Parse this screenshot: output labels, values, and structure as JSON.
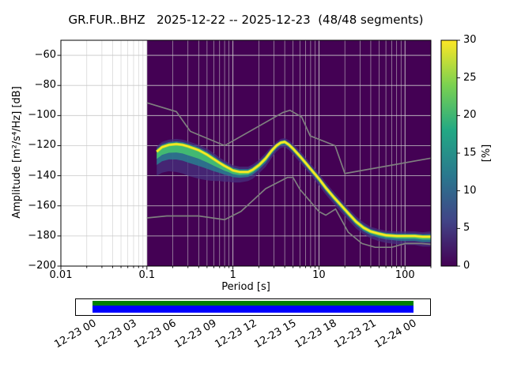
{
  "title": "GR.FUR..BHZ   2025-12-22 -- 2025-12-23  (48/48 segments)",
  "axes": {
    "xlabel": "Period [s]",
    "ylabel": "Amplitude [m²/s⁴/Hz] [dB]",
    "x_tick_labels": [
      "0.01",
      "0.1",
      "1",
      "10",
      "100"
    ],
    "x_tick_values": [
      0.01,
      0.1,
      1,
      10,
      100
    ],
    "y_tick_labels": [
      "−60",
      "−80",
      "−100",
      "−120",
      "−140",
      "−160",
      "−180",
      "−200"
    ],
    "y_tick_values": [
      -60,
      -80,
      -100,
      -120,
      -140,
      -160,
      -180,
      -200
    ]
  },
  "colorbar": {
    "label": "[%]",
    "tick_labels": [
      "0",
      "5",
      "10",
      "15",
      "20",
      "25",
      "30"
    ],
    "tick_values": [
      0,
      5,
      10,
      15,
      20,
      25,
      30
    ],
    "range": [
      0,
      30
    ],
    "colormap": "viridis",
    "gradient_stops": [
      "#440154",
      "#414487",
      "#2a788e",
      "#22a884",
      "#7ad151",
      "#fde725"
    ]
  },
  "chart_data": {
    "type": "heatmap",
    "title": "GR.FUR..BHZ   2025-12-22 -- 2025-12-23  (48/48 segments)",
    "xlabel": "Period [s]",
    "ylabel": "Amplitude [m²/s⁴/Hz] [dB]",
    "x_scale": "log",
    "xlim": [
      0.01,
      200
    ],
    "ylim": [
      -200,
      -50
    ],
    "grid": true,
    "colorbar_label": "[%]",
    "colorbar_range": [
      0,
      30
    ],
    "background_color": "#440154",
    "data_start_period": 0.1,
    "ppsd": {
      "periods": [
        0.13,
        0.15,
        0.18,
        0.22,
        0.26,
        0.3,
        0.4,
        0.5,
        0.6,
        0.7,
        0.8,
        0.9,
        1.0,
        1.2,
        1.5,
        1.7,
        2.0,
        2.4,
        2.8,
        3.2,
        3.6,
        4.0,
        4.5,
        5.0,
        6.0,
        7.0,
        8.0,
        10,
        12,
        15,
        18,
        22,
        27,
        33,
        40,
        50,
        60,
        80,
        100,
        130,
        160,
        200
      ],
      "mode_db": [
        -124,
        -121,
        -119.5,
        -119,
        -119.5,
        -120.5,
        -123,
        -126,
        -129,
        -131.5,
        -133.5,
        -135,
        -136.5,
        -137.5,
        -137.5,
        -136,
        -133,
        -128.5,
        -123.5,
        -120,
        -118,
        -117.5,
        -119.5,
        -122,
        -127,
        -131.5,
        -135.5,
        -142,
        -148,
        -154.5,
        -159.5,
        -165,
        -170.5,
        -174.5,
        -177,
        -178.5,
        -179.5,
        -180,
        -180,
        -180,
        -180.5,
        -180.5
      ],
      "lower_db": [
        -140,
        -138,
        -137,
        -137.5,
        -138.5,
        -140,
        -142,
        -143,
        -143.5,
        -143.5,
        -144,
        -144,
        -144.5,
        -144.5,
        -143.5,
        -142,
        -138.5,
        -134,
        -128.5,
        -124,
        -121.5,
        -121,
        -123,
        -126,
        -131,
        -135.5,
        -139.5,
        -146.5,
        -152.5,
        -159,
        -164,
        -169.5,
        -175,
        -179,
        -181.5,
        -183.5,
        -184.5,
        -185.5,
        -186,
        -186,
        -187,
        -187
      ],
      "upper_db": [
        -120.5,
        -117.5,
        -116,
        -115.5,
        -116,
        -117,
        -119.5,
        -122,
        -125,
        -128,
        -130,
        -131.5,
        -133,
        -134,
        -134,
        -132.5,
        -129.5,
        -125,
        -120.5,
        -117.5,
        -115.5,
        -115,
        -116.5,
        -119,
        -123.5,
        -128,
        -132,
        -138.5,
        -144.5,
        -151,
        -156,
        -161.5,
        -167,
        -171,
        -174,
        -175.5,
        -176.5,
        -177,
        -177,
        -177,
        -177.5,
        -177
      ]
    },
    "noise_models": {
      "nhnm": [
        [
          0.1,
          -91.5
        ],
        [
          0.22,
          -97.4
        ],
        [
          0.32,
          -110.5
        ],
        [
          0.8,
          -120.0
        ],
        [
          3.8,
          -98.0
        ],
        [
          4.6,
          -96.5
        ],
        [
          6.3,
          -101.0
        ],
        [
          7.9,
          -113.5
        ],
        [
          15.4,
          -120.0
        ],
        [
          20,
          -138.5
        ],
        [
          200,
          -128.3
        ]
      ],
      "nlnm": [
        [
          0.1,
          -168.0
        ],
        [
          0.17,
          -166.7
        ],
        [
          0.4,
          -166.7
        ],
        [
          0.8,
          -169.2
        ],
        [
          1.24,
          -163.7
        ],
        [
          2.4,
          -148.6
        ],
        [
          4.3,
          -141.1
        ],
        [
          5.0,
          -141.1
        ],
        [
          6.0,
          -149.0
        ],
        [
          10.0,
          -163.8
        ],
        [
          12.0,
          -166.2
        ],
        [
          15.6,
          -162.1
        ],
        [
          21.9,
          -177.5
        ],
        [
          31.6,
          -185.0
        ],
        [
          45,
          -187.5
        ],
        [
          70,
          -187.5
        ],
        [
          101,
          -185.0
        ],
        [
          154,
          -185.0
        ],
        [
          200,
          -185.5
        ]
      ],
      "color": "#7f7f7f"
    }
  },
  "timeline": {
    "labels": [
      "12-23 00",
      "12-23 03",
      "12-23 06",
      "12-23 09",
      "12-23 12",
      "12-23 15",
      "12-23 18",
      "12-23 21",
      "12-24 00"
    ],
    "bar_colors": {
      "top": "#008000",
      "bottom": "#0000ff"
    }
  }
}
